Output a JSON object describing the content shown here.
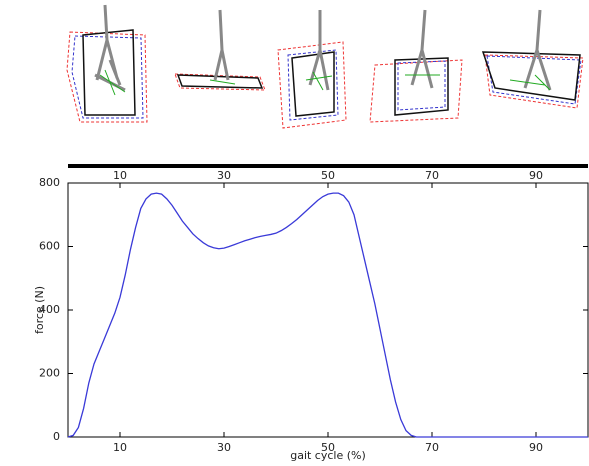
{
  "chart_data": {
    "type": "line",
    "xlabel": "gait cycle (%)",
    "ylabel": "force (N)",
    "x": [
      0,
      1,
      2,
      3,
      4,
      5,
      6,
      7,
      8,
      9,
      10,
      11,
      12,
      13,
      14,
      15,
      16,
      17,
      18,
      19,
      20,
      21,
      22,
      23,
      24,
      25,
      26,
      27,
      28,
      29,
      30,
      31,
      32,
      33,
      34,
      35,
      36,
      37,
      38,
      39,
      40,
      41,
      42,
      43,
      44,
      45,
      46,
      47,
      48,
      49,
      50,
      51,
      52,
      53,
      54,
      55,
      56,
      57,
      58,
      59,
      60,
      61,
      62,
      63,
      64,
      65,
      66,
      67,
      70,
      80,
      90,
      100
    ],
    "series": [
      {
        "color": "#3a3ad8",
        "values": [
          0,
          5,
          30,
          90,
          170,
          230,
          270,
          310,
          350,
          390,
          440,
          510,
          590,
          660,
          720,
          750,
          765,
          768,
          765,
          750,
          730,
          705,
          680,
          660,
          640,
          625,
          612,
          602,
          596,
          593,
          595,
          600,
          606,
          612,
          618,
          623,
          628,
          632,
          635,
          638,
          642,
          650,
          660,
          672,
          685,
          700,
          715,
          730,
          745,
          757,
          765,
          768,
          768,
          760,
          740,
          700,
          630,
          560,
          490,
          420,
          340,
          260,
          180,
          110,
          55,
          20,
          5,
          0,
          0,
          0,
          0,
          0
        ]
      }
    ],
    "xlim": [
      0,
      100
    ],
    "ylim": [
      0,
      800
    ],
    "xticks": [
      10,
      30,
      50,
      70,
      90
    ],
    "yticks": [
      0,
      200,
      400,
      600,
      800
    ],
    "grid": false
  }
}
